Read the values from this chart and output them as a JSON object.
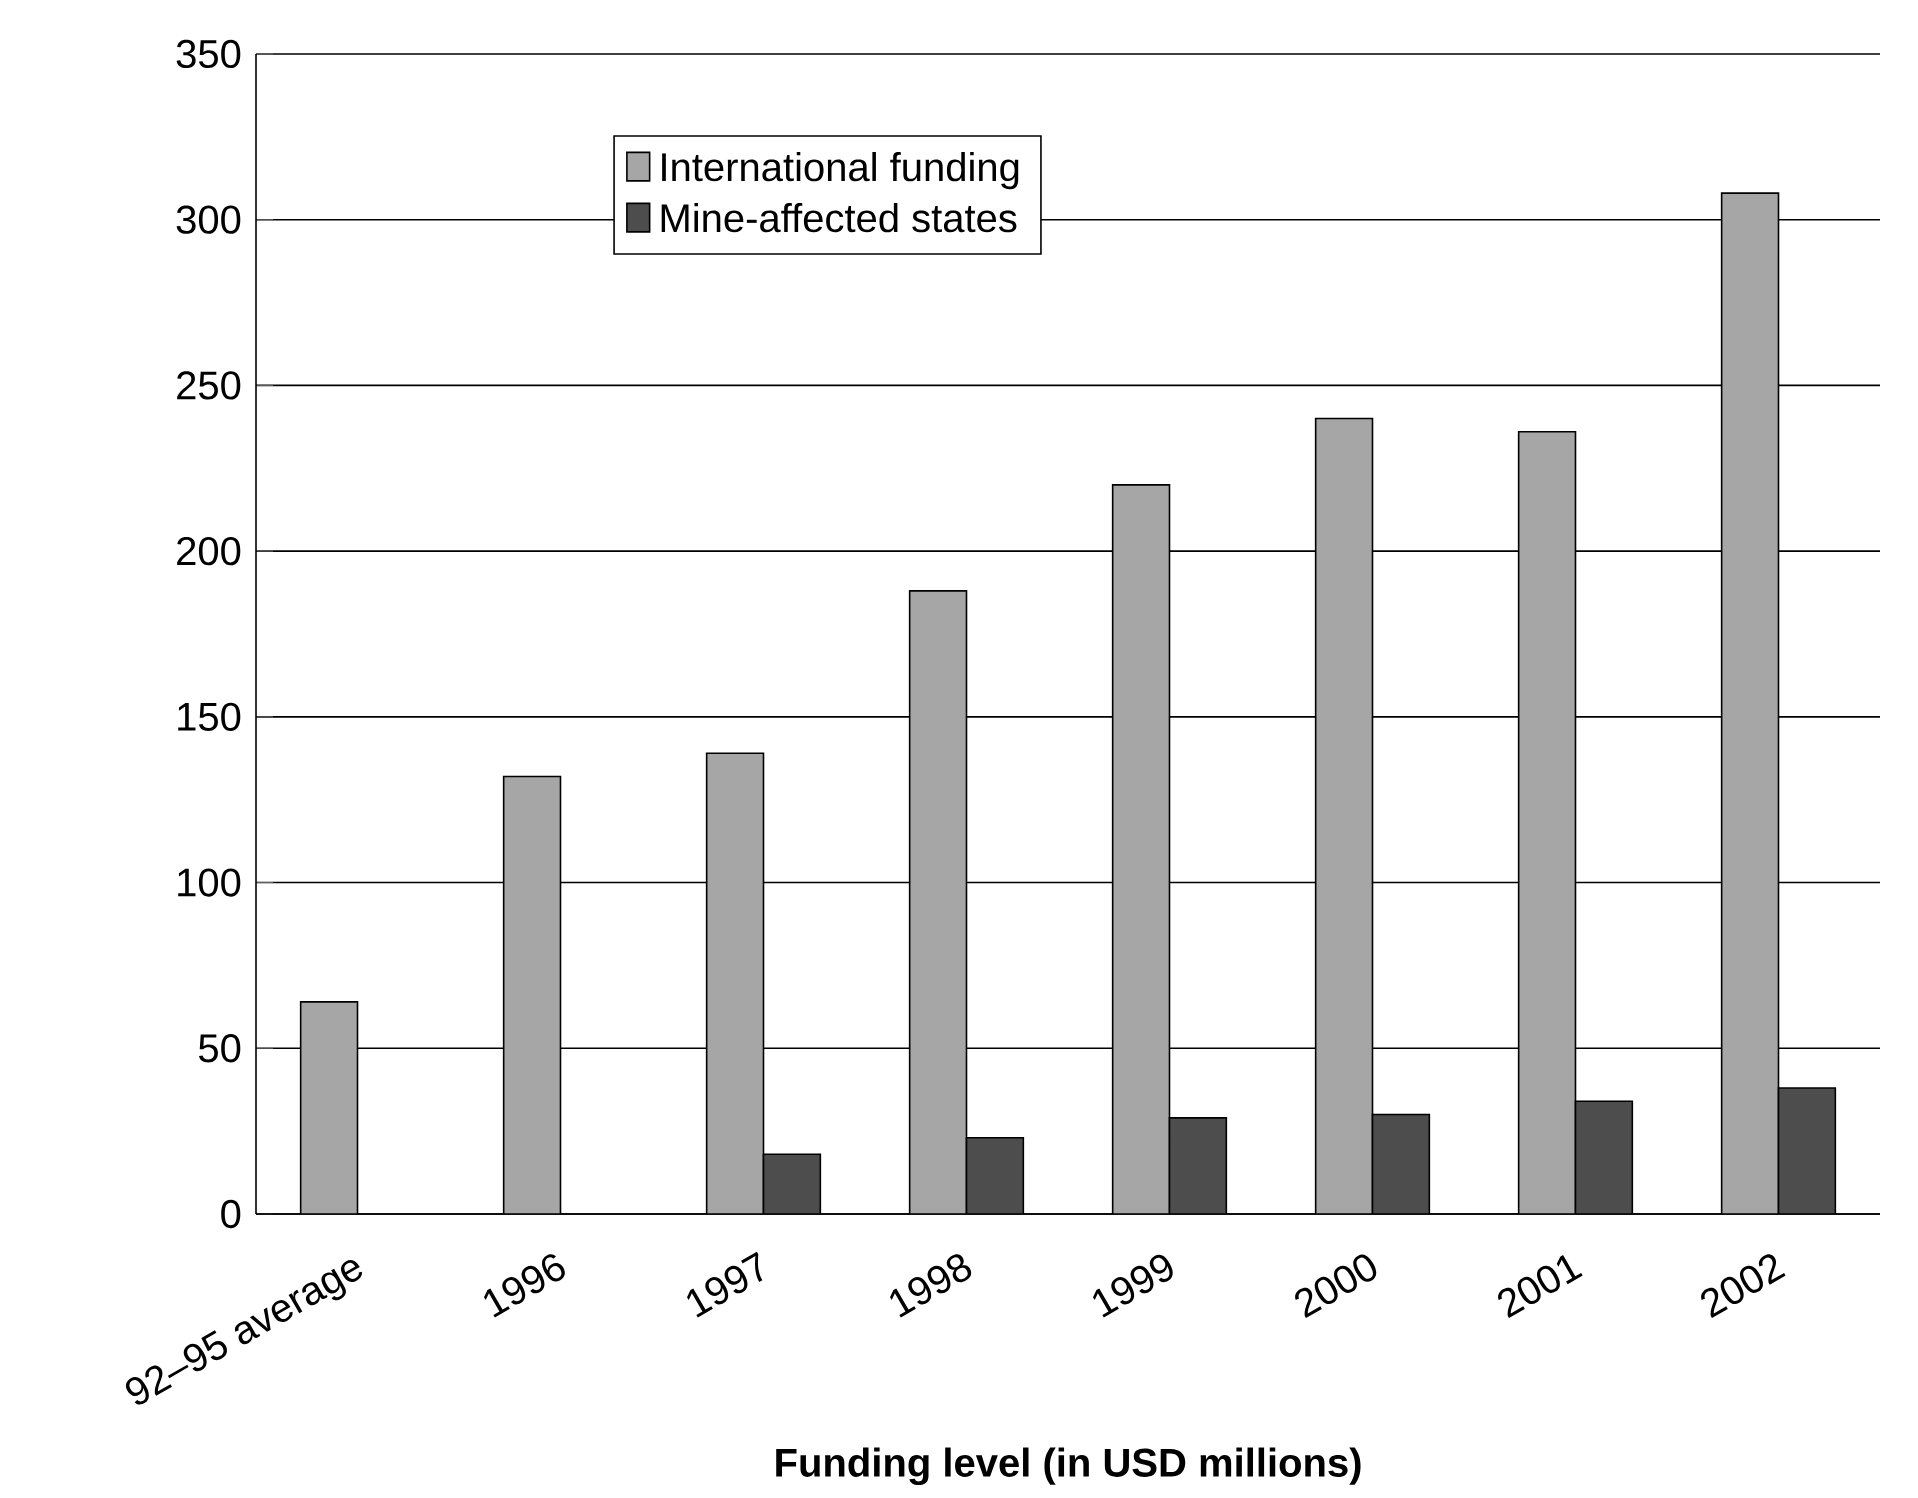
{
  "chart_data": {
    "type": "bar",
    "xlabel": "Funding level (in USD millions)",
    "categories": [
      "92–95 average",
      "1996",
      "1997",
      "1998",
      "1999",
      "2000",
      "2001",
      "2002"
    ],
    "series": [
      {
        "name": "International funding",
        "color": "#a6a6a6",
        "values": [
          64,
          132,
          139,
          188,
          220,
          240,
          236,
          308
        ]
      },
      {
        "name": "Mine-affected states",
        "color": "#4d4d4d",
        "values": [
          null,
          null,
          18,
          23,
          29,
          30,
          34,
          38
        ]
      }
    ],
    "ylim": [
      0,
      350
    ],
    "yticks": [
      0,
      50,
      100,
      150,
      200,
      250,
      300,
      350
    ],
    "grid": "y",
    "legend": "top"
  }
}
